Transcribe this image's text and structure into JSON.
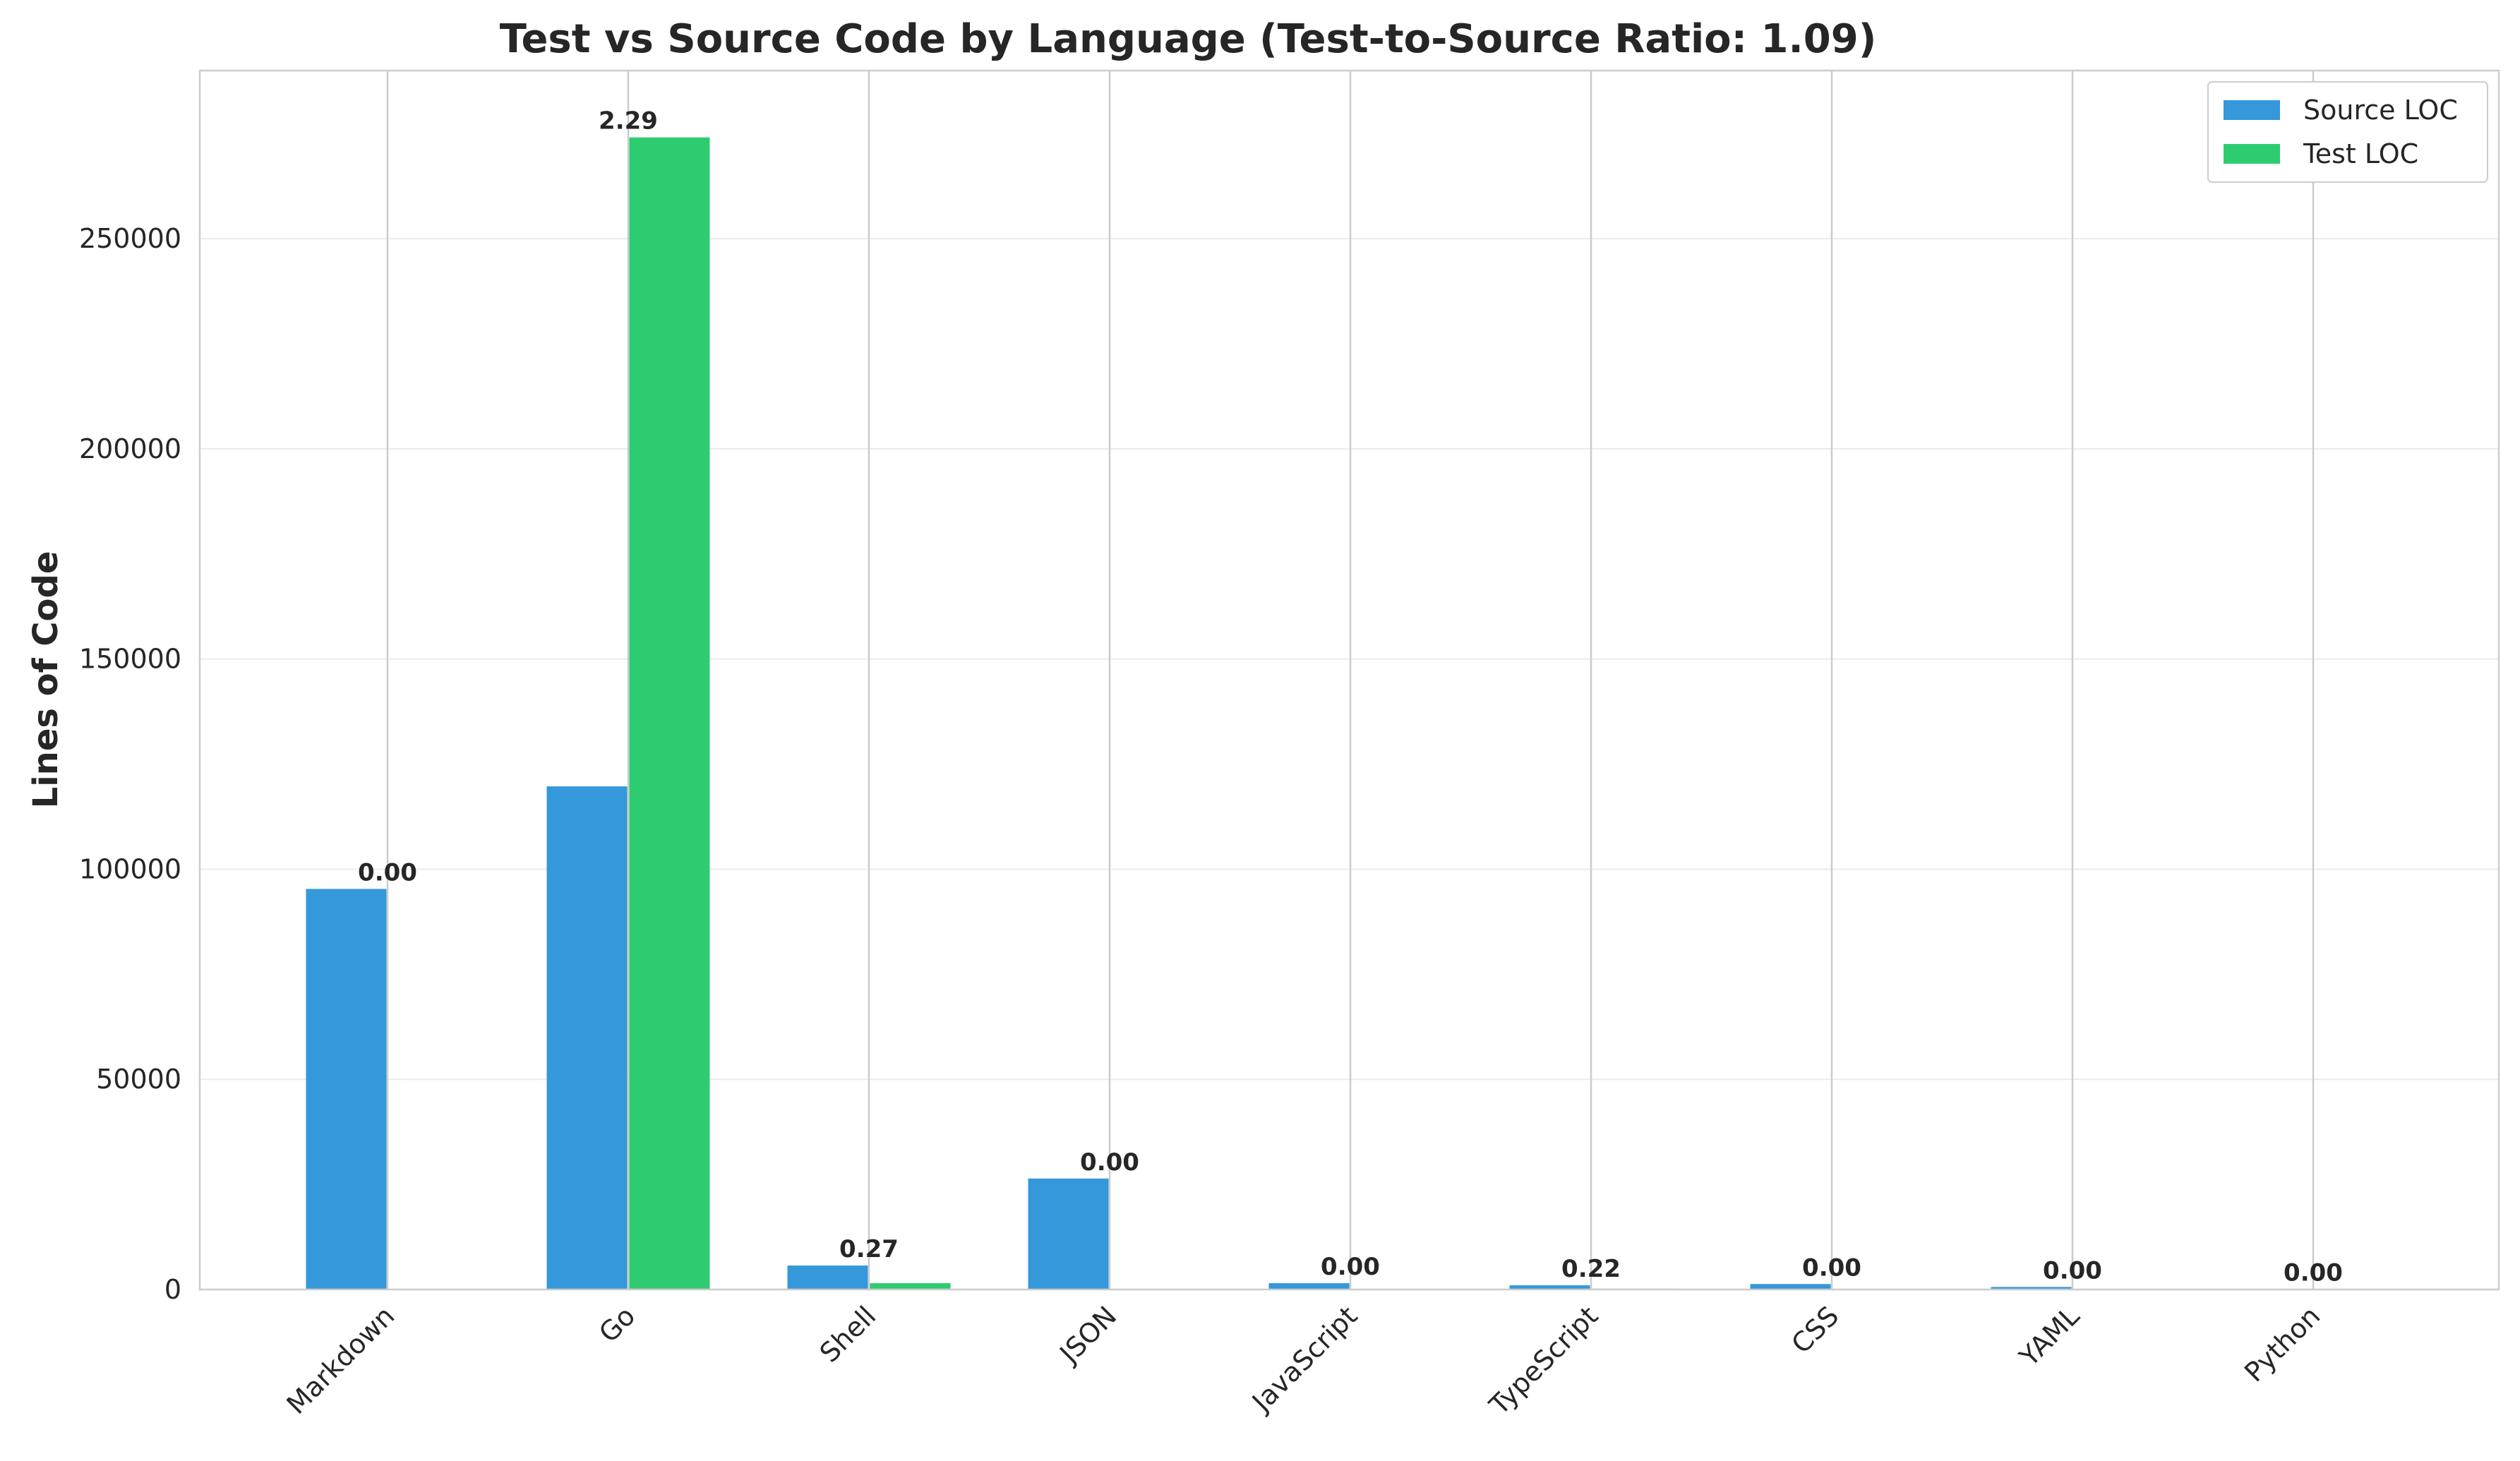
{
  "chart_data": {
    "type": "bar",
    "title": "Test vs Source Code by Language (Test-to-Source Ratio: 1.09)",
    "xlabel": "",
    "ylabel": "Lines of Code",
    "categories": [
      "Markdown",
      "Go",
      "Shell",
      "JSON",
      "JavaScript",
      "TypeScript",
      "CSS",
      "YAML",
      "Python"
    ],
    "series": [
      {
        "name": "Source LOC",
        "color": "#3498db",
        "values": [
          95300,
          119700,
          5700,
          26400,
          1500,
          1000,
          1300,
          600,
          100
        ]
      },
      {
        "name": "Test LOC",
        "color": "#2ecc71",
        "values": [
          0,
          274100,
          1500,
          0,
          0,
          200,
          0,
          0,
          0
        ]
      }
    ],
    "ratio_labels": [
      "0.00",
      "2.29",
      "0.27",
      "0.00",
      "0.00",
      "0.22",
      "0.00",
      "0.00",
      "0.00"
    ],
    "ylim": [
      0,
      290000
    ],
    "yticks": [
      "0",
      "50000",
      "100000",
      "150000",
      "200000",
      "250000"
    ],
    "grid": true,
    "legend_position": "top-right"
  },
  "colors": {
    "source": "#3498db",
    "test": "#2ecc71",
    "grid": "#dddddd",
    "spine": "#cccccc",
    "text": "#262626"
  }
}
